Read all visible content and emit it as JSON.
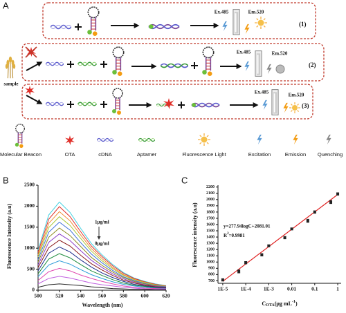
{
  "panels": [
    "A"
  ],
  "schematic": {
    "sample": "sample",
    "rows": [
      {
        "excitation": "Ex.485",
        "emission": "Em.520",
        "label": "(1)"
      },
      {
        "excitation": "Ex.485",
        "emission": "Em.520",
        "label": "(2)"
      },
      {
        "excitation": "Ex.485",
        "emission": "Em.520",
        "label": "(3)"
      }
    ],
    "legend": [
      "Molecular Beacon",
      "OTA",
      "cDNA",
      "Aptamer",
      "Fluorescence Light",
      "Excitation",
      "Emission",
      "Quenching"
    ]
  },
  "chart_data": [
    {
      "type": "line",
      "panel": "B",
      "xlabel": "Wavelength (nm)",
      "ylabel": "Fluorescence Intensity (a.u)",
      "annotations": [
        "1μg/ml",
        "0μg/ml"
      ],
      "xlim": [
        500,
        620
      ],
      "xticks": [
        500,
        520,
        540,
        560,
        580,
        600,
        620
      ],
      "ylim": [
        0,
        2500
      ],
      "yticks": [
        0,
        500,
        1000,
        1500,
        2000,
        2500
      ],
      "x": [
        500,
        510,
        520,
        530,
        540,
        550,
        560,
        570,
        580,
        590,
        600,
        610,
        620
      ],
      "series": [
        {
          "color": "#3fd0e0",
          "values": [
            950,
            1790,
            2100,
            1850,
            1470,
            1110,
            840,
            610,
            420,
            290,
            210,
            150,
            110
          ]
        },
        {
          "color": "#e0302a",
          "values": [
            900,
            1690,
            1990,
            1750,
            1390,
            1050,
            800,
            580,
            400,
            280,
            200,
            140,
            100
          ]
        },
        {
          "color": "#f08a30",
          "values": [
            840,
            1590,
            1870,
            1650,
            1310,
            990,
            750,
            540,
            370,
            260,
            190,
            130,
            90
          ]
        },
        {
          "color": "#a8c838",
          "values": [
            790,
            1490,
            1750,
            1540,
            1230,
            930,
            700,
            510,
            350,
            250,
            180,
            120,
            90
          ]
        },
        {
          "color": "#3c6ed8",
          "values": [
            730,
            1380,
            1620,
            1430,
            1130,
            860,
            650,
            470,
            320,
            230,
            160,
            110,
            80
          ]
        },
        {
          "color": "#8a8a20",
          "values": [
            670,
            1260,
            1480,
            1300,
            1040,
            780,
            590,
            430,
            300,
            210,
            150,
            100,
            70
          ]
        },
        {
          "color": "#8a3cc8",
          "values": [
            600,
            1140,
            1340,
            1180,
            940,
            710,
            540,
            390,
            270,
            190,
            130,
            90,
            70
          ]
        },
        {
          "color": "#8a1a1a",
          "values": [
            540,
            1010,
            1190,
            1050,
            830,
            630,
            480,
            350,
            240,
            170,
            120,
            80,
            60
          ]
        },
        {
          "color": "#1a2a8a",
          "values": [
            460,
            880,
            1030,
            910,
            720,
            550,
            410,
            300,
            210,
            140,
            100,
            70,
            50
          ]
        },
        {
          "color": "#1a8a3a",
          "values": [
            390,
            740,
            870,
            770,
            610,
            460,
            350,
            250,
            170,
            120,
            90,
            60,
            40
          ]
        },
        {
          "color": "#2a9ad8",
          "values": [
            320,
            600,
            700,
            620,
            490,
            370,
            280,
            200,
            140,
            100,
            70,
            50,
            40
          ]
        },
        {
          "color": "#e04ab0",
          "values": [
            230,
            440,
            520,
            460,
            360,
            280,
            210,
            150,
            100,
            70,
            50,
            40,
            30
          ]
        },
        {
          "color": "#c060e0",
          "values": [
            150,
            280,
            330,
            290,
            230,
            170,
            130,
            100,
            70,
            50,
            30,
            20,
            20
          ]
        },
        {
          "color": "#222222",
          "values": [
            70,
            130,
            150,
            130,
            110,
            80,
            60,
            40,
            30,
            20,
            20,
            10,
            10
          ]
        }
      ]
    },
    {
      "type": "scatter",
      "panel": "C",
      "xscale": "log",
      "xlabel": {
        "main": "C",
        "sub": "OTA",
        "unit": "(μg mL",
        "sup": "-1",
        "end": ")"
      },
      "ylabel": "Fluorescence intensity (a.u)",
      "equation": "y=277.94logC+2081.01",
      "r2": {
        "main": "R",
        "sup": "2",
        "rest": "=0.9981"
      },
      "xlim": [
        6.2e-06,
        1.41
      ],
      "xticks": [
        {
          "value": 1e-05,
          "label": "1E-5"
        },
        {
          "value": 0.0001,
          "label": "1E-4"
        },
        {
          "value": 0.001,
          "label": "1E-3"
        },
        0.01,
        0.1,
        1
      ],
      "ylim": [
        660,
        2230
      ],
      "yticks": [
        700,
        800,
        900,
        1000,
        1100,
        1200,
        1300,
        1400,
        1500,
        1600,
        1700,
        1800,
        1900,
        2000,
        2100,
        2200
      ],
      "series": [
        {
          "color": "#222222",
          "x": [
            1e-05,
            5e-05,
            0.0001,
            0.0005,
            0.001,
            0.005,
            0.01,
            0.05,
            0.1,
            0.5,
            1
          ],
          "values": [
            715,
            850,
            990,
            1115,
            1260,
            1390,
            1530,
            1660,
            1800,
            1960,
            2090
          ],
          "errors": [
            20,
            25,
            20,
            20,
            15,
            20,
            15,
            25,
            20,
            25,
            20
          ]
        }
      ],
      "fit": {
        "color": "#e02020",
        "x": [
          1e-05,
          1
        ],
        "values": [
          691.25,
          2081.01
        ]
      }
    }
  ]
}
